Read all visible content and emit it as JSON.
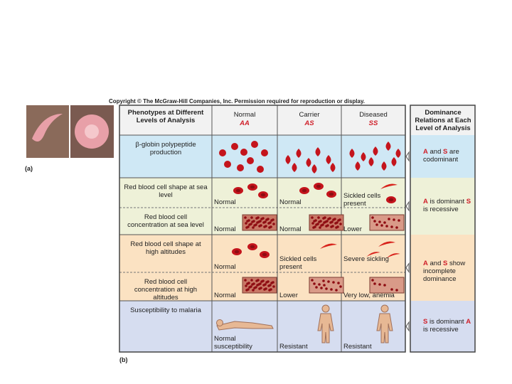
{
  "header": {
    "copyright": "Copyright © The McGraw-Hill Companies, Inc. Permission required for reproduction or display."
  },
  "panel_a": {
    "label": "(a)"
  },
  "panel_b": {
    "label": "(b)"
  },
  "table": {
    "header": {
      "label": "Phenotypes at Different Levels of Analysis",
      "columns": [
        {
          "name": "Normal",
          "genotype": "AA"
        },
        {
          "name": "Carrier",
          "genotype": "AS"
        },
        {
          "name": "Diseased",
          "genotype": "SS"
        }
      ]
    },
    "rows": [
      {
        "label": "β-globin polypeptide production"
      },
      {
        "label": "Red blood cell shape at sea level",
        "cells": [
          "Normal",
          "Normal",
          "Sickled cells present"
        ]
      },
      {
        "label": "Red blood cell concentration at sea level",
        "cells": [
          "Normal",
          "Normal",
          "Lower"
        ]
      },
      {
        "label": "Red blood cell shape at high altitudes",
        "cells": [
          "Normal",
          "Sickled cells present",
          "Severe sickling"
        ]
      },
      {
        "label": "Red blood cell concentration at high altitudes",
        "cells": [
          "Normal",
          "Lower",
          "Very low, anemia"
        ]
      },
      {
        "label": "Susceptibility to malaria",
        "cells": [
          "Normal susceptibility",
          "Resistant",
          "Resistant"
        ]
      }
    ]
  },
  "dominance": {
    "title": "Dominance Relations at Each Level of Analysis",
    "items": [
      [
        "A",
        " and ",
        "S",
        " are codominant"
      ],
      [
        "A",
        " is dominant ",
        "S",
        " is recessive"
      ],
      [
        "A",
        " and ",
        "S",
        " show incomplete dominance"
      ],
      [
        "S",
        " is dominant ",
        "A",
        " is recessive"
      ]
    ]
  }
}
